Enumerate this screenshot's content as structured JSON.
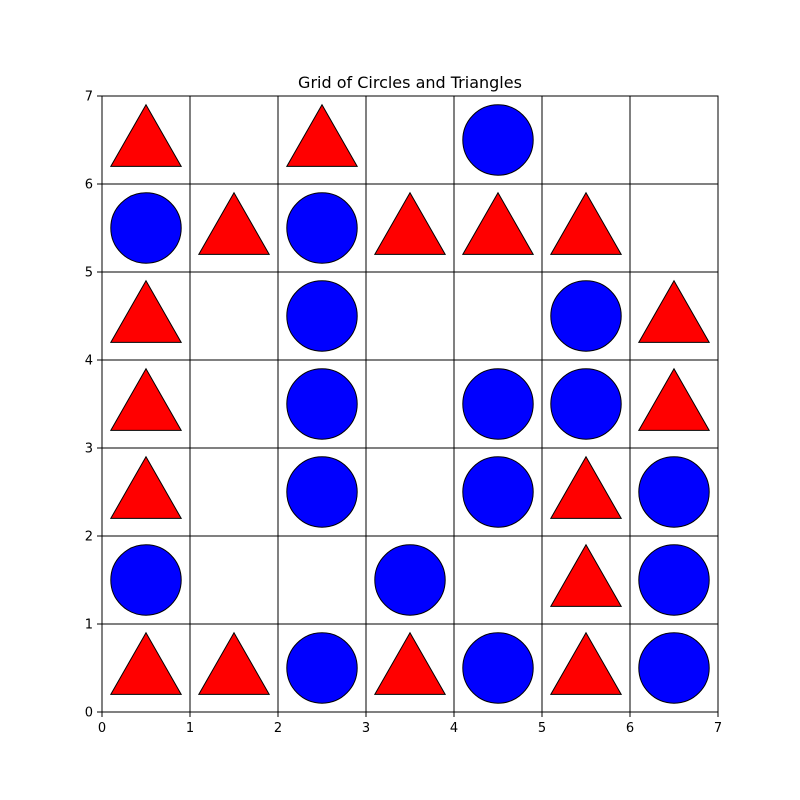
{
  "chart_data": {
    "type": "scatter",
    "title": "Grid of Circles and Triangles",
    "xlabel": "",
    "ylabel": "",
    "xlim": [
      0,
      7
    ],
    "ylim": [
      0,
      7
    ],
    "x_ticks": [
      "0",
      "1",
      "2",
      "3",
      "4",
      "5",
      "6",
      "7"
    ],
    "y_ticks": [
      "0",
      "1",
      "2",
      "3",
      "4",
      "5",
      "6",
      "7"
    ],
    "grid": true,
    "grid_size": [
      7,
      7
    ],
    "shape_colors": {
      "circle": "#0000ff",
      "triangle": "#ff0000",
      "outline": "#000000"
    },
    "rows_top_to_bottom": [
      [
        "triangle",
        "",
        "triangle",
        "",
        "circle",
        "",
        ""
      ],
      [
        "circle",
        "triangle",
        "circle",
        "triangle",
        "triangle",
        "triangle",
        ""
      ],
      [
        "triangle",
        "",
        "circle",
        "",
        "",
        "circle",
        "triangle"
      ],
      [
        "triangle",
        "",
        "circle",
        "",
        "circle",
        "circle",
        "triangle"
      ],
      [
        "triangle",
        "",
        "circle",
        "",
        "circle",
        "triangle",
        "circle"
      ],
      [
        "circle",
        "",
        "",
        "circle",
        "",
        "triangle",
        "circle"
      ],
      [
        "triangle",
        "triangle",
        "circle",
        "triangle",
        "circle",
        "triangle",
        "circle"
      ]
    ]
  }
}
